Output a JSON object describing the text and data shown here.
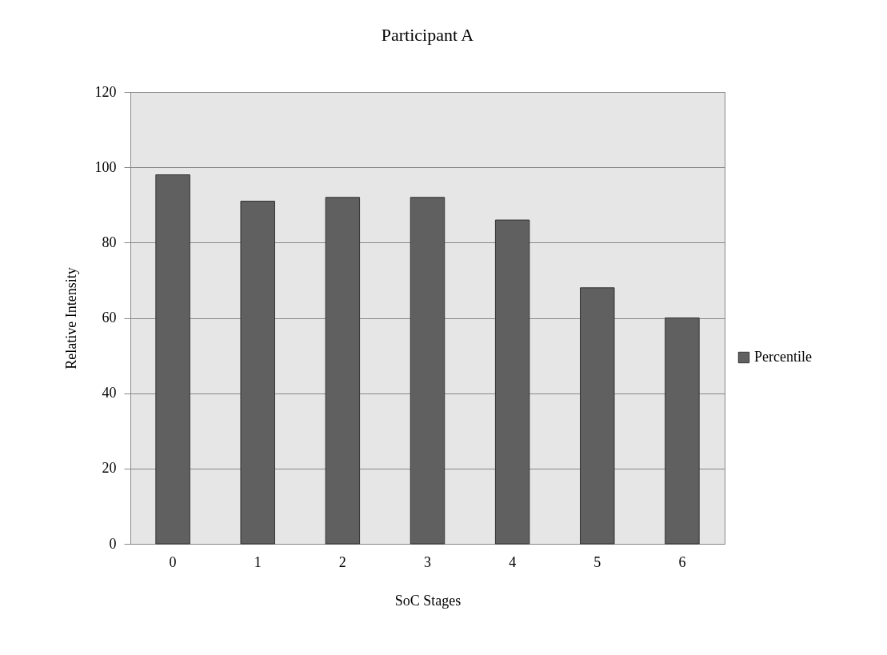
{
  "chart_data": {
    "type": "bar",
    "title": "Participant A",
    "xlabel": "SoC Stages",
    "ylabel": "Relative Intensity",
    "categories": [
      "0",
      "1",
      "2",
      "3",
      "4",
      "5",
      "6"
    ],
    "series": [
      {
        "name": "Percentile",
        "color": "#606060",
        "values": [
          98,
          91,
          92,
          92,
          86,
          68,
          60
        ]
      }
    ],
    "ylim": [
      0,
      120
    ],
    "yticks": [
      0,
      20,
      40,
      60,
      80,
      100,
      120
    ],
    "grid": "y",
    "legend": "right"
  }
}
